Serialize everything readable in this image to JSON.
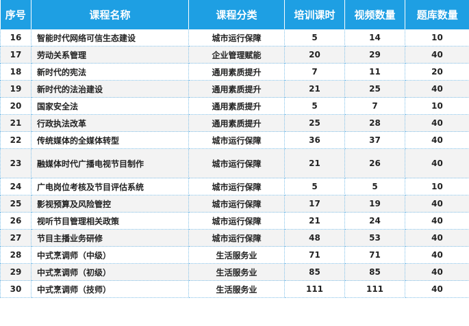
{
  "table": {
    "headers": [
      "序号",
      "课程名称",
      "课程分类",
      "培训课时",
      "视频数量",
      "题库数量"
    ],
    "rows": [
      [
        "16",
        "智能时代网络可信生态建设",
        "城市运行保障",
        "5",
        "14",
        "10"
      ],
      [
        "17",
        "劳动关系管理",
        "企业管理赋能",
        "20",
        "29",
        "40"
      ],
      [
        "18",
        "新时代的宪法",
        "通用素质提升",
        "7",
        "11",
        "20"
      ],
      [
        "19",
        "新时代的法治建设",
        "通用素质提升",
        "21",
        "25",
        "40"
      ],
      [
        "20",
        "国家安全法",
        "通用素质提升",
        "5",
        "7",
        "10"
      ],
      [
        "21",
        "行政执法改革",
        "通用素质提升",
        "25",
        "28",
        "40"
      ],
      [
        "22",
        "传统媒体的全媒体转型",
        "城市运行保障",
        "36",
        "37",
        "40"
      ],
      [
        "23",
        "融媒体时代广播电视节目制作",
        "城市运行保障",
        "21",
        "26",
        "40"
      ],
      [
        "24",
        "广电岗位考核及节目评估系统",
        "城市运行保障",
        "5",
        "5",
        "10"
      ],
      [
        "25",
        "影视预算及风险管控",
        "城市运行保障",
        "17",
        "19",
        "40"
      ],
      [
        "26",
        "视听节目管理相关政策",
        "城市运行保障",
        "21",
        "24",
        "40"
      ],
      [
        "27",
        "节目主播业务研修",
        "城市运行保障",
        "48",
        "53",
        "40"
      ],
      [
        "28",
        "中式烹调师（中级）",
        "生活服务业",
        "71",
        "71",
        "40"
      ],
      [
        "29",
        "中式烹调师（初级）",
        "生活服务业",
        "85",
        "85",
        "40"
      ],
      [
        "30",
        "中式烹调师（技师）",
        "生活服务业",
        "111",
        "111",
        "40"
      ]
    ]
  },
  "colors": {
    "header_bg": "#1e9fe3",
    "header_text": "#ffffff",
    "grid_line": "#7fbfe8",
    "row_alt": "#f3f3f3"
  }
}
